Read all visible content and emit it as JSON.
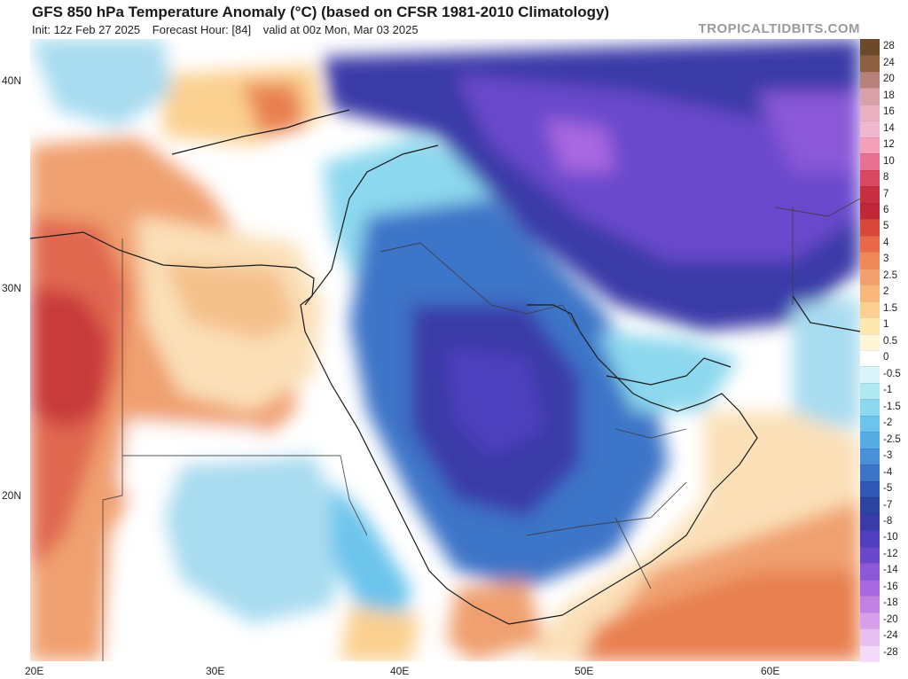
{
  "header": {
    "title": "GFS 850 hPa Temperature Anomaly (°C) (based on CFSR 1981-2010 Climatology)",
    "init": "Init: 12z Feb 27 2025",
    "forecast_hour": "Forecast Hour: [84]",
    "valid": "valid at 00z Mon, Mar 03 2025",
    "brand": "TROPICALTIDBITS.COM"
  },
  "map": {
    "lat_labels": [
      "40N",
      "30N",
      "20N"
    ],
    "lon_labels": [
      "20E",
      "30E",
      "40E",
      "50E",
      "60E"
    ]
  },
  "legend": {
    "labels": [
      "28",
      "24",
      "20",
      "18",
      "16",
      "14",
      "12",
      "10",
      "8",
      "7",
      "6",
      "5",
      "4",
      "3",
      "2.5",
      "2",
      "1.5",
      "1",
      "0.5",
      "0",
      "-0.5",
      "-1",
      "-1.5",
      "-2",
      "-2.5",
      "-3",
      "-4",
      "-5",
      "-7",
      "-8",
      "-10",
      "-12",
      "-14",
      "-16",
      "-18",
      "-20",
      "-24",
      "-28"
    ],
    "colors": [
      "#6b4a2a",
      "#8a6040",
      "#b8807a",
      "#d8a0a8",
      "#e8b0c0",
      "#f0b8cc",
      "#f4a0b8",
      "#e87090",
      "#d84860",
      "#c83040",
      "#c02838",
      "#d84838",
      "#e86848",
      "#f08858",
      "#f4a06c",
      "#f8b87c",
      "#fbd090",
      "#fde8b0",
      "#fff6d8",
      "#ffffff",
      "#d8f4f8",
      "#b0e8f0",
      "#8cd8ee",
      "#6cc4ec",
      "#58acE4",
      "#4a90d8",
      "#3c74c8",
      "#3058b4",
      "#2a44a0",
      "#3a3aa8",
      "#5040c0",
      "#6a48cc",
      "#8a58d8",
      "#a868e0",
      "#c080e4",
      "#d8a0ec",
      "#e8c0f0",
      "#f4dcf8"
    ]
  },
  "colors": {
    "strong_warm": "#c83a3a",
    "warm": "#f0a070",
    "light_warm": "#fbe0b8",
    "neutral": "#ffffff",
    "light_cool": "#a8dcf0",
    "cool": "#3c74c8",
    "strong_cool": "#6a48cc"
  }
}
